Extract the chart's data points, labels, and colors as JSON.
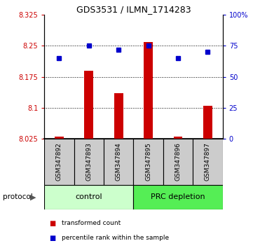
{
  "title": "GDS3531 / ILMN_1714283",
  "samples": [
    "GSM347892",
    "GSM347893",
    "GSM347894",
    "GSM347895",
    "GSM347896",
    "GSM347897"
  ],
  "red_values": [
    8.03,
    8.19,
    8.135,
    8.26,
    8.03,
    8.105
  ],
  "blue_percentiles": [
    65,
    75,
    72,
    75,
    65,
    70
  ],
  "ylim_left": [
    8.025,
    8.325
  ],
  "ylim_right": [
    0,
    100
  ],
  "yticks_left": [
    8.025,
    8.1,
    8.175,
    8.25,
    8.325
  ],
  "yticks_right": [
    0,
    25,
    50,
    75,
    100
  ],
  "ytick_labels_left": [
    "8.025",
    "8.1",
    "8.175",
    "8.25",
    "8.325"
  ],
  "ytick_labels_right": [
    "0",
    "25",
    "50",
    "75",
    "100%"
  ],
  "dotted_lines": [
    8.1,
    8.175,
    8.25
  ],
  "bar_baseline": 8.025,
  "bar_color": "#cc0000",
  "marker_color": "#0000cc",
  "group1_label": "control",
  "group2_label": "PRC depletion",
  "group1_color": "#ccffcc",
  "group2_color": "#55ee55",
  "protocol_label": "protocol",
  "legend_red": "transformed count",
  "legend_blue": "percentile rank within the sample",
  "box_color": "#cccccc",
  "bar_width": 0.3
}
